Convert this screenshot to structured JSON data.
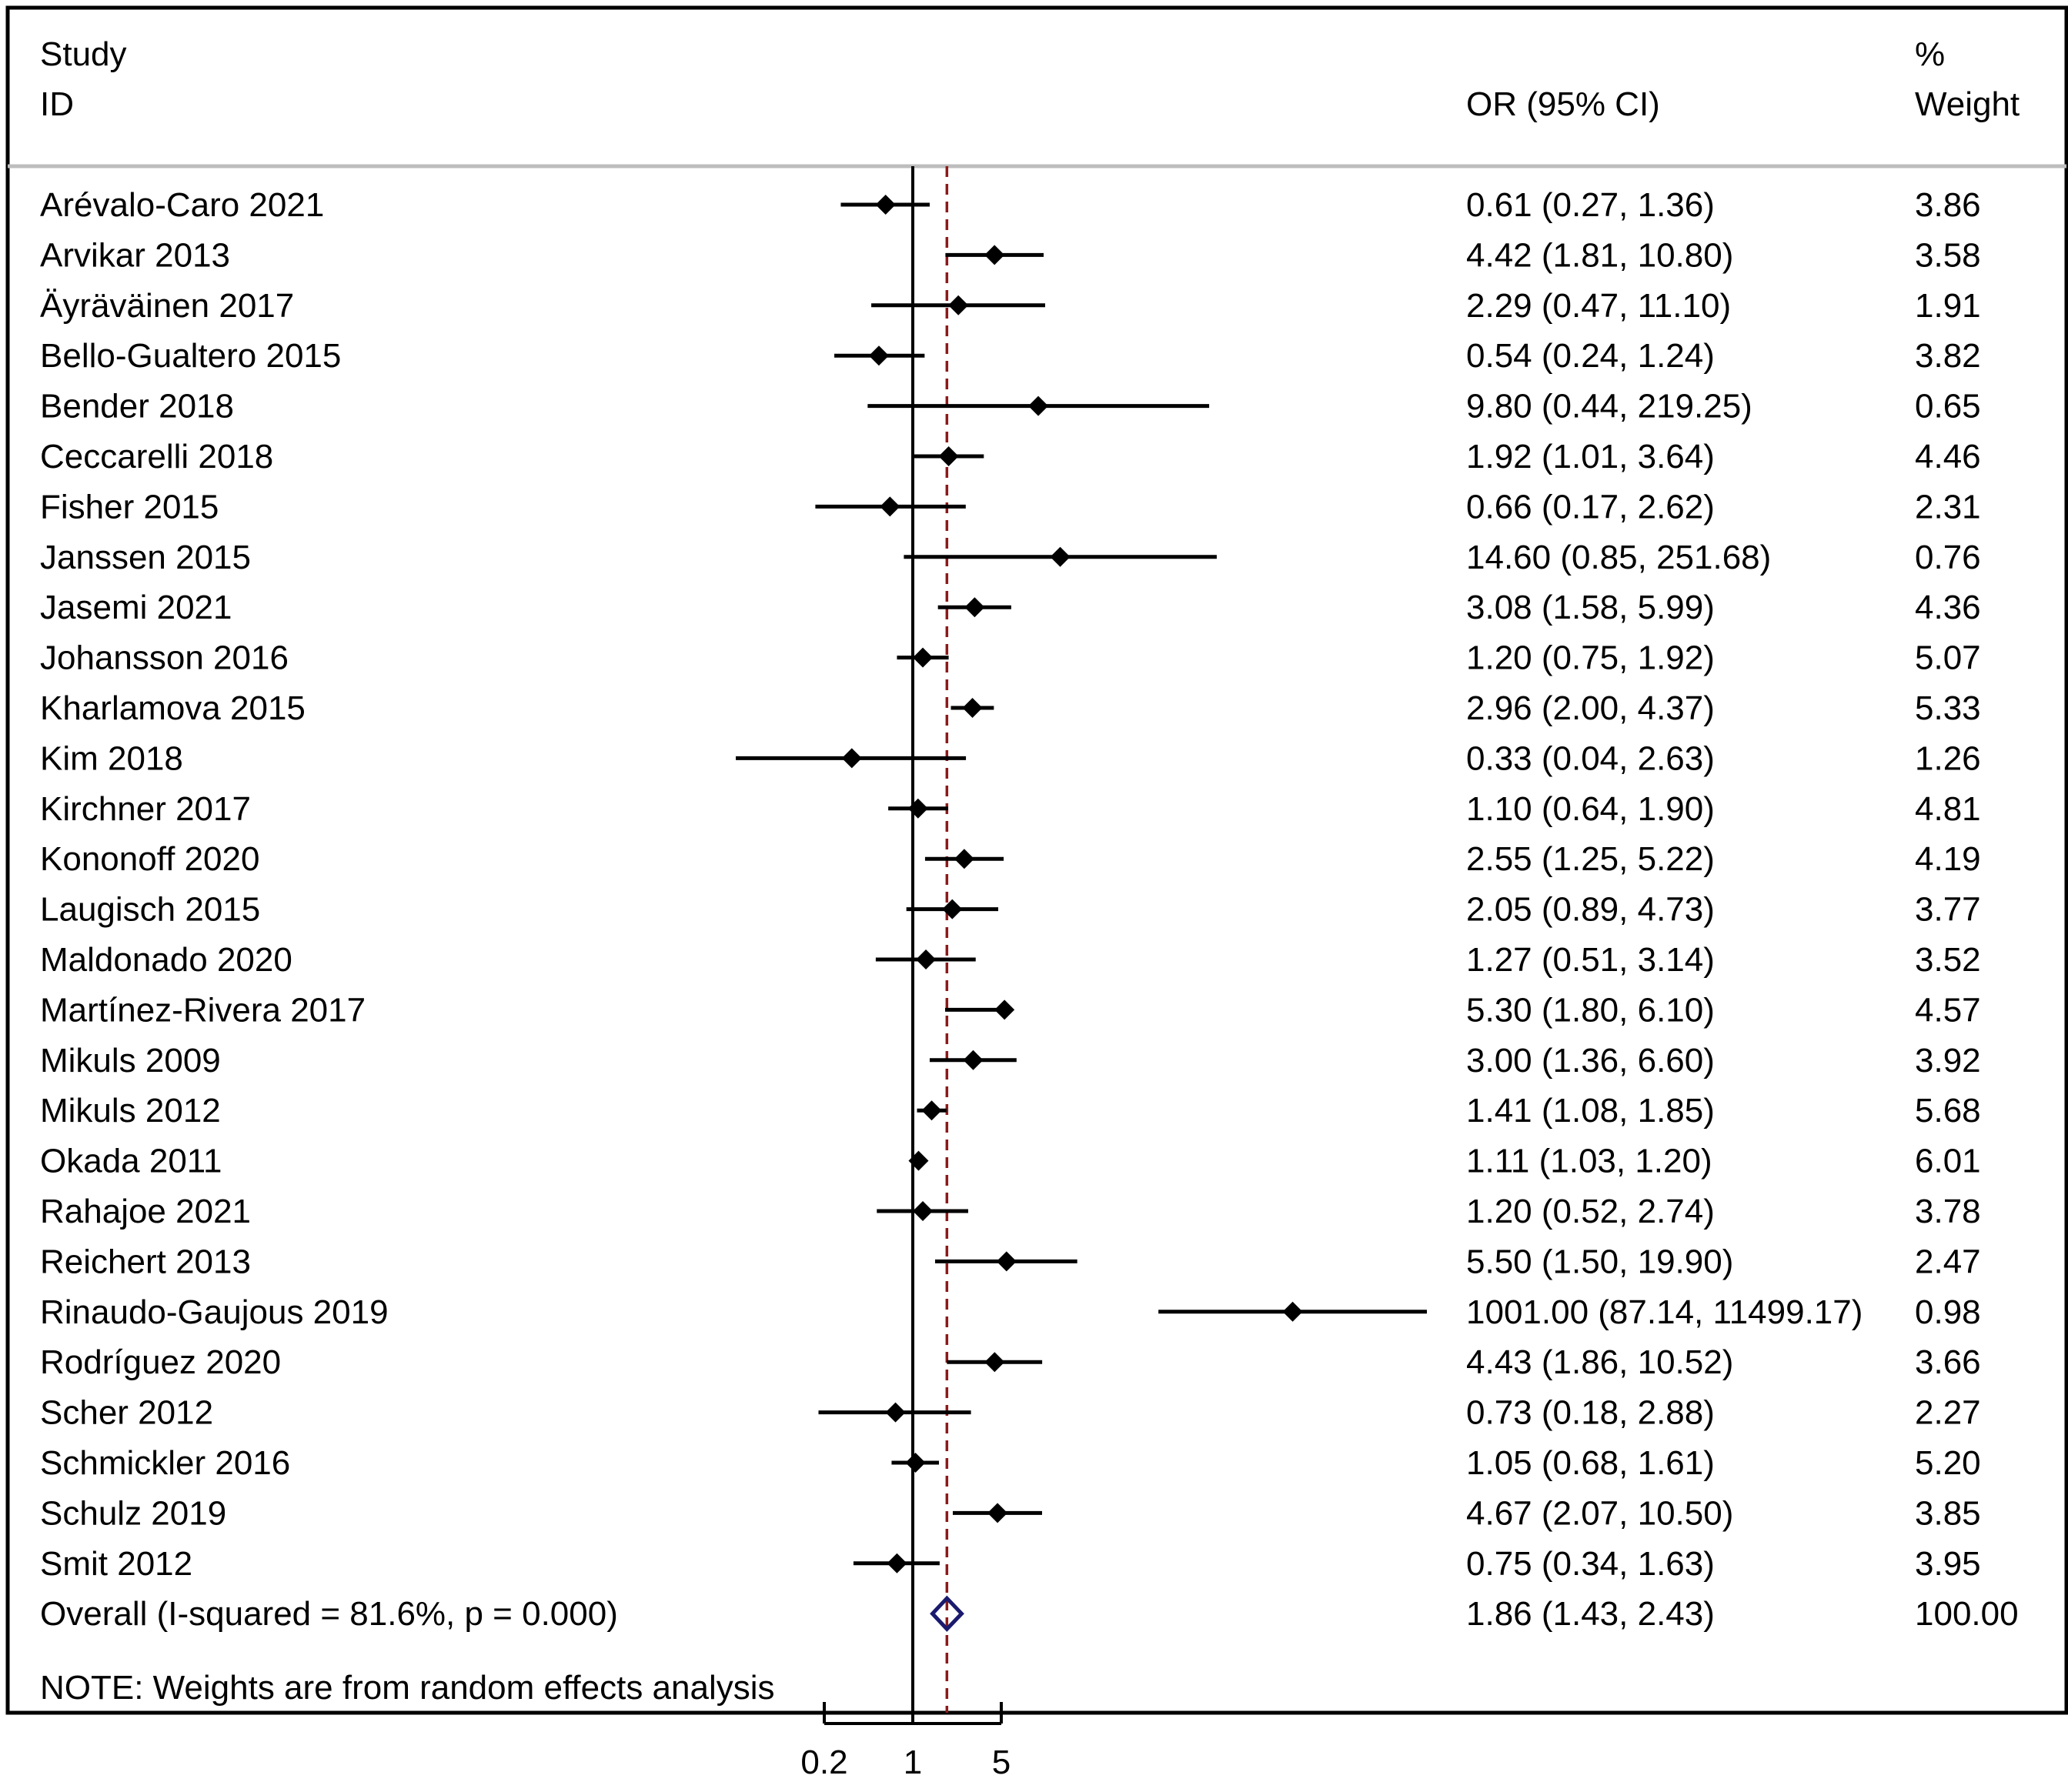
{
  "header": {
    "study_label": "Study",
    "id_label": "ID",
    "or_label": "OR (95% CI)",
    "pct_label": "%",
    "weight_label": "Weight"
  },
  "note": "NOTE: Weights are from random effects analysis",
  "colors": {
    "marker": "#000000",
    "reference_line": "#000000",
    "overall_line": "#8b1a1a",
    "overall_diamond": "#1a1a6e",
    "header_rule": "#bdbdbd"
  },
  "chart_data": {
    "type": "forest",
    "x_scale": "log",
    "x_ticks": [
      0.2,
      1,
      5
    ],
    "x_tick_labels": [
      "0.2",
      "1",
      "5"
    ],
    "reference_value": 1,
    "overall_value": 1.86,
    "studies": [
      {
        "id": "Arévalo-Caro 2021",
        "or": 0.61,
        "lo": 0.27,
        "hi": 1.36,
        "ci_text": "0.61 (0.27, 1.36)",
        "weight": "3.86"
      },
      {
        "id": "Arvikar 2013",
        "or": 4.42,
        "lo": 1.81,
        "hi": 10.8,
        "ci_text": "4.42 (1.81, 10.80)",
        "weight": "3.58"
      },
      {
        "id": "Äyräväinen 2017",
        "or": 2.29,
        "lo": 0.47,
        "hi": 11.1,
        "ci_text": "2.29 (0.47, 11.10)",
        "weight": "1.91"
      },
      {
        "id": "Bello-Gualtero 2015",
        "or": 0.54,
        "lo": 0.24,
        "hi": 1.24,
        "ci_text": "0.54 (0.24, 1.24)",
        "weight": "3.82"
      },
      {
        "id": "Bender 2018",
        "or": 9.8,
        "lo": 0.44,
        "hi": 219.25,
        "ci_text": "9.80 (0.44, 219.25)",
        "weight": "0.65"
      },
      {
        "id": "Ceccarelli 2018",
        "or": 1.92,
        "lo": 1.01,
        "hi": 3.64,
        "ci_text": "1.92 (1.01, 3.64)",
        "weight": "4.46"
      },
      {
        "id": "Fisher 2015",
        "or": 0.66,
        "lo": 0.17,
        "hi": 2.62,
        "ci_text": "0.66 (0.17, 2.62)",
        "weight": "2.31"
      },
      {
        "id": "Janssen 2015",
        "or": 14.6,
        "lo": 0.85,
        "hi": 251.68,
        "ci_text": "14.60 (0.85, 251.68)",
        "weight": "0.76"
      },
      {
        "id": "Jasemi 2021",
        "or": 3.08,
        "lo": 1.58,
        "hi": 5.99,
        "ci_text": "3.08 (1.58, 5.99)",
        "weight": "4.36"
      },
      {
        "id": "Johansson 2016",
        "or": 1.2,
        "lo": 0.75,
        "hi": 1.92,
        "ci_text": "1.20 (0.75, 1.92)",
        "weight": "5.07"
      },
      {
        "id": "Kharlamova 2015",
        "or": 2.96,
        "lo": 2.0,
        "hi": 4.37,
        "ci_text": "2.96 (2.00, 4.37)",
        "weight": "5.33"
      },
      {
        "id": "Kim 2018",
        "or": 0.33,
        "lo": 0.04,
        "hi": 2.63,
        "ci_text": "0.33 (0.04, 2.63)",
        "weight": "1.26"
      },
      {
        "id": "Kirchner 2017",
        "or": 1.1,
        "lo": 0.64,
        "hi": 1.9,
        "ci_text": "1.10 (0.64, 1.90)",
        "weight": "4.81"
      },
      {
        "id": "Kononoff 2020",
        "or": 2.55,
        "lo": 1.25,
        "hi": 5.22,
        "ci_text": "2.55 (1.25, 5.22)",
        "weight": "4.19"
      },
      {
        "id": "Laugisch 2015",
        "or": 2.05,
        "lo": 0.89,
        "hi": 4.73,
        "ci_text": "2.05 (0.89, 4.73)",
        "weight": "3.77"
      },
      {
        "id": "Maldonado 2020",
        "or": 1.27,
        "lo": 0.51,
        "hi": 3.14,
        "ci_text": "1.27 (0.51, 3.14)",
        "weight": "3.52"
      },
      {
        "id": "Martínez-Rivera 2017",
        "or": 5.3,
        "lo": 1.8,
        "hi": 6.1,
        "ci_text": "5.30 (1.80, 6.10)",
        "weight": "4.57"
      },
      {
        "id": "Mikuls 2009",
        "or": 3.0,
        "lo": 1.36,
        "hi": 6.6,
        "ci_text": "3.00 (1.36, 6.60)",
        "weight": "3.92"
      },
      {
        "id": "Mikuls 2012",
        "or": 1.41,
        "lo": 1.08,
        "hi": 1.85,
        "ci_text": "1.41 (1.08, 1.85)",
        "weight": "5.68"
      },
      {
        "id": "Okada 2011",
        "or": 1.11,
        "lo": 1.03,
        "hi": 1.2,
        "ci_text": "1.11 (1.03, 1.20)",
        "weight": "6.01"
      },
      {
        "id": "Rahajoe 2021",
        "or": 1.2,
        "lo": 0.52,
        "hi": 2.74,
        "ci_text": "1.20 (0.52, 2.74)",
        "weight": "3.78"
      },
      {
        "id": "Reichert 2013",
        "or": 5.5,
        "lo": 1.5,
        "hi": 19.9,
        "ci_text": "5.50 (1.50, 19.90)",
        "weight": "2.47"
      },
      {
        "id": "Rinaudo-Gaujous 2019",
        "or": 1001.0,
        "lo": 87.14,
        "hi": 11499.17,
        "ci_text": "1001.00 (87.14, 11499.17)",
        "weight": "0.98"
      },
      {
        "id": "Rodríguez 2020",
        "or": 4.43,
        "lo": 1.86,
        "hi": 10.52,
        "ci_text": "4.43 (1.86, 10.52)",
        "weight": "3.66"
      },
      {
        "id": "Scher 2012",
        "or": 0.73,
        "lo": 0.18,
        "hi": 2.88,
        "ci_text": "0.73 (0.18, 2.88)",
        "weight": "2.27"
      },
      {
        "id": "Schmickler 2016",
        "or": 1.05,
        "lo": 0.68,
        "hi": 1.61,
        "ci_text": "1.05 (0.68, 1.61)",
        "weight": "5.20"
      },
      {
        "id": "Schulz 2019",
        "or": 4.67,
        "lo": 2.07,
        "hi": 10.5,
        "ci_text": "4.67 (2.07, 10.50)",
        "weight": "3.85"
      },
      {
        "id": "Smit 2012",
        "or": 0.75,
        "lo": 0.34,
        "hi": 1.63,
        "ci_text": "0.75 (0.34, 1.63)",
        "weight": "3.95"
      }
    ],
    "overall": {
      "id": "Overall  (I-squared = 81.6%, p = 0.000)",
      "or": 1.86,
      "lo": 1.43,
      "hi": 2.43,
      "ci_text": "1.86 (1.43, 2.43)",
      "weight": "100.00"
    }
  }
}
